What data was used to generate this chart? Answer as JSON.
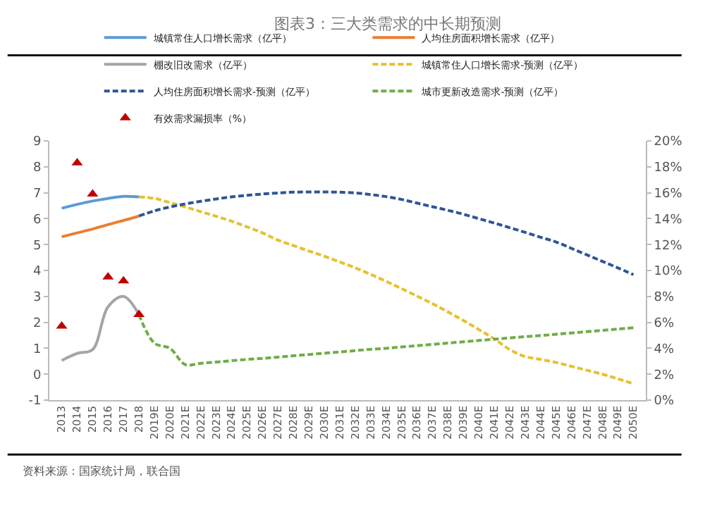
{
  "chart_data": {
    "type": "line",
    "title": "图表3：三大类需求的中长期预测",
    "categories": [
      "2013",
      "2014",
      "2015",
      "2016",
      "2017",
      "2018",
      "2019E",
      "2020E",
      "2021E",
      "2022E",
      "2023E",
      "2024E",
      "2025E",
      "2026E",
      "2027E",
      "2028E",
      "2029E",
      "2030E",
      "2031E",
      "2032E",
      "2033E",
      "2034E",
      "2035E",
      "2036E",
      "2037E",
      "2038E",
      "2039E",
      "2040E",
      "2041E",
      "2042E",
      "2043E",
      "2044E",
      "2045E",
      "2046E",
      "2047E",
      "2048E",
      "2049E",
      "2050E"
    ],
    "series": [
      {
        "name": "城镇常住人口增长需求（亿平）",
        "color": "#5b9bd5",
        "line_style": "solid",
        "values": [
          6.4,
          6.55,
          6.68,
          6.78,
          6.86,
          6.84,
          null,
          null,
          null,
          null,
          null,
          null,
          null,
          null,
          null,
          null,
          null,
          null,
          null,
          null,
          null,
          null,
          null,
          null,
          null,
          null,
          null,
          null,
          null,
          null,
          null,
          null,
          null,
          null,
          null,
          null,
          null,
          null
        ]
      },
      {
        "name": "人均住房面积增长需求（亿平）",
        "color": "#ed7d31",
        "line_style": "solid",
        "values": [
          5.3,
          5.45,
          5.6,
          5.77,
          5.93,
          6.1,
          null,
          null,
          null,
          null,
          null,
          null,
          null,
          null,
          null,
          null,
          null,
          null,
          null,
          null,
          null,
          null,
          null,
          null,
          null,
          null,
          null,
          null,
          null,
          null,
          null,
          null,
          null,
          null,
          null,
          null,
          null,
          null
        ]
      },
      {
        "name": "棚改旧改需求（亿平）",
        "color": "#a5a5a5",
        "line_style": "solid",
        "values": [
          0.53,
          0.8,
          0.95,
          2.6,
          3.0,
          2.3,
          null,
          null,
          null,
          null,
          null,
          null,
          null,
          null,
          null,
          null,
          null,
          null,
          null,
          null,
          null,
          null,
          null,
          null,
          null,
          null,
          null,
          null,
          null,
          null,
          null,
          null,
          null,
          null,
          null,
          null,
          null,
          null
        ]
      },
      {
        "name": "城镇常住人口增长需求-预测（亿平）",
        "color": "#e6c12e",
        "line_style": "dashed",
        "values": [
          null,
          null,
          null,
          null,
          null,
          6.84,
          6.78,
          6.62,
          6.45,
          6.27,
          6.09,
          5.9,
          5.68,
          5.45,
          5.17,
          4.96,
          4.75,
          4.55,
          4.33,
          4.1,
          3.85,
          3.58,
          3.3,
          3.01,
          2.72,
          2.4,
          2.07,
          1.72,
          1.36,
          0.95,
          0.68,
          0.57,
          0.45,
          0.3,
          0.15,
          0.0,
          -0.18,
          -0.37
        ]
      },
      {
        "name": "人均住房面积增长需求-预测（亿平）",
        "color": "#2f5597",
        "line_style": "dashed",
        "values": [
          null,
          null,
          null,
          null,
          null,
          6.1,
          6.3,
          6.45,
          6.57,
          6.67,
          6.76,
          6.84,
          6.9,
          6.95,
          6.99,
          7.02,
          7.03,
          7.03,
          7.02,
          6.99,
          6.93,
          6.85,
          6.74,
          6.6,
          6.46,
          6.32,
          6.17,
          6.0,
          5.83,
          5.65,
          5.47,
          5.28,
          5.1,
          4.85,
          4.6,
          4.35,
          4.1,
          3.84
        ]
      },
      {
        "name": "城市更新改造需求-预测（亿平）",
        "color": "#70ad47",
        "line_style": "dashed",
        "values": [
          null,
          null,
          null,
          null,
          null,
          2.3,
          1.2,
          1.0,
          0.37,
          0.42,
          0.47,
          0.52,
          0.57,
          0.61,
          0.66,
          0.71,
          0.76,
          0.81,
          0.86,
          0.91,
          0.96,
          1.0,
          1.05,
          1.1,
          1.15,
          1.2,
          1.25,
          1.3,
          1.35,
          1.4,
          1.45,
          1.49,
          1.54,
          1.59,
          1.64,
          1.69,
          1.74,
          1.79
        ]
      },
      {
        "name": "有效需求漏损率（%）",
        "type": "scatter",
        "axis": "y2",
        "marker": "triangle",
        "color": "#c00000",
        "values": [
          5.7,
          18.3,
          15.9,
          9.5,
          9.2,
          6.6,
          null,
          null,
          null,
          null,
          null,
          null,
          null,
          null,
          null,
          null,
          null,
          null,
          null,
          null,
          null,
          null,
          null,
          null,
          null,
          null,
          null,
          null,
          null,
          null,
          null,
          null,
          null,
          null,
          null,
          null,
          null,
          null
        ]
      }
    ],
    "ylim": [
      -1,
      9
    ],
    "yticks": [
      -1,
      0,
      1,
      2,
      3,
      4,
      5,
      6,
      7,
      8,
      9
    ],
    "y2lim": [
      0,
      20
    ],
    "y2ticks": [
      {
        "value": 0,
        "label": "0%"
      },
      {
        "value": 2,
        "label": "2%"
      },
      {
        "value": 4,
        "label": "4%"
      },
      {
        "value": 6,
        "label": "6%"
      },
      {
        "value": 8,
        "label": "8%"
      },
      {
        "value": 10,
        "label": "10%"
      },
      {
        "value": 12,
        "label": "12%"
      },
      {
        "value": 14,
        "label": "14%"
      },
      {
        "value": 16,
        "label": "16%"
      },
      {
        "value": 18,
        "label": "18%"
      },
      {
        "value": 20,
        "label": "20%"
      }
    ],
    "grid": false,
    "legend": "top",
    "annotations": [
      "资料来源：国家统计局，联合国"
    ]
  }
}
